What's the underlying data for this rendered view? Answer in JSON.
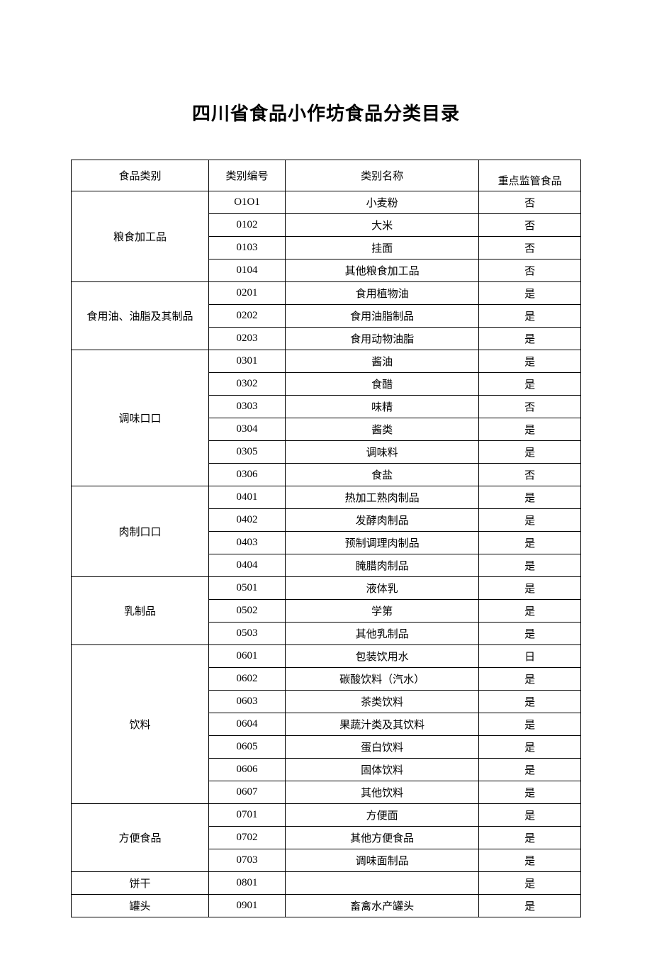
{
  "title": "四川省食品小作坊食品分类目录",
  "headers": {
    "category": "食品类别",
    "code": "类别编号",
    "name": "类别名称",
    "flag": "重点监管食品"
  },
  "styling": {
    "background_color": "#ffffff",
    "border_color": "#000000",
    "text_color": "#000000",
    "title_fontsize": 26,
    "cell_fontsize": 15,
    "font_family": "SimSun"
  },
  "table": {
    "type": "table",
    "columns": [
      "食品类别",
      "类别编号",
      "类别名称",
      "重点监管食品"
    ],
    "column_widths_pct": [
      27,
      15,
      38,
      20
    ],
    "groups": [
      {
        "category": "粮食加工品",
        "rows": [
          {
            "code": "O1O1",
            "name": "小麦粉",
            "flag": "否"
          },
          {
            "code": "0102",
            "name": "大米",
            "flag": "否"
          },
          {
            "code": "0103",
            "name": "挂面",
            "flag": "否"
          },
          {
            "code": "0104",
            "name": "其他粮食加工品",
            "flag": "否"
          }
        ]
      },
      {
        "category": "食用油、油脂及其制品",
        "rows": [
          {
            "code": "0201",
            "name": "食用植物油",
            "flag": "是"
          },
          {
            "code": "0202",
            "name": "食用油脂制品",
            "flag": "是"
          },
          {
            "code": "0203",
            "name": "食用动物油脂",
            "flag": "是"
          }
        ]
      },
      {
        "category": "调味口口",
        "rows": [
          {
            "code": "0301",
            "name": "酱油",
            "flag": "是"
          },
          {
            "code": "0302",
            "name": "食醋",
            "flag": "是"
          },
          {
            "code": "0303",
            "name": "味精",
            "flag": "否"
          },
          {
            "code": "0304",
            "name": "酱类",
            "flag": "是"
          },
          {
            "code": "0305",
            "name": "调味料",
            "flag": "是"
          },
          {
            "code": "0306",
            "name": "食盐",
            "flag": "否"
          }
        ]
      },
      {
        "category": "肉制口口",
        "rows": [
          {
            "code": "0401",
            "name": "热加工熟肉制品",
            "flag": "是"
          },
          {
            "code": "0402",
            "name": "发酵肉制品",
            "flag": "是"
          },
          {
            "code": "0403",
            "name": "预制调理肉制品",
            "flag": "是"
          },
          {
            "code": "0404",
            "name": "腌腊肉制品",
            "flag": "是"
          }
        ]
      },
      {
        "category": "乳制品",
        "rows": [
          {
            "code": "0501",
            "name": "液体乳",
            "flag": "是"
          },
          {
            "code": "0502",
            "name": "学第",
            "flag": "是"
          },
          {
            "code": "0503",
            "name": "其他乳制品",
            "flag": "是"
          }
        ]
      },
      {
        "category": "饮料",
        "rows": [
          {
            "code": "0601",
            "name": "包装饮用水",
            "flag": "日"
          },
          {
            "code": "0602",
            "name": "碳酸饮料（汽水）",
            "flag": "是"
          },
          {
            "code": "0603",
            "name": "茶类饮料",
            "flag": "是"
          },
          {
            "code": "0604",
            "name": "果蔬汁类及其饮料",
            "flag": "是"
          },
          {
            "code": "0605",
            "name": "蛋白饮料",
            "flag": "是"
          },
          {
            "code": "0606",
            "name": "固体饮料",
            "flag": "是"
          },
          {
            "code": "0607",
            "name": "其他饮料",
            "flag": "是"
          }
        ]
      },
      {
        "category": "方便食品",
        "rows": [
          {
            "code": "0701",
            "name": "方便面",
            "flag": "是"
          },
          {
            "code": "0702",
            "name": "其他方便食品",
            "flag": "是"
          },
          {
            "code": "0703",
            "name": "调味面制品",
            "flag": "是"
          }
        ]
      },
      {
        "category": "饼干",
        "rows": [
          {
            "code": "0801",
            "name": "",
            "flag": "是"
          }
        ]
      },
      {
        "category": "罐头",
        "rows": [
          {
            "code": "0901",
            "name": "畜禽水产罐头",
            "flag": "是"
          }
        ]
      }
    ]
  }
}
